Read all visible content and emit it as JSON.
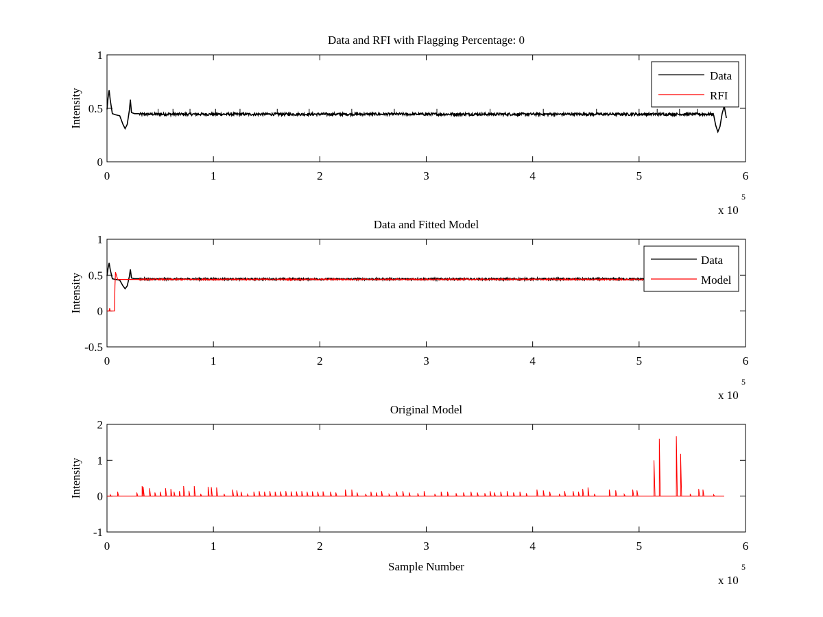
{
  "chart_data": [
    {
      "type": "line",
      "title": "Data and RFI with Flagging Percentage: 0",
      "xlabel": "",
      "ylabel": "Intensity",
      "xlim": [
        0,
        6
      ],
      "ylim": [
        0,
        1
      ],
      "x_ticks": [
        "0",
        "1",
        "2",
        "3",
        "4",
        "5",
        "6"
      ],
      "y_ticks": [
        "0",
        "0.5",
        "1"
      ],
      "x_multiplier": {
        "base": "x 10",
        "exponent": "5"
      },
      "legend": {
        "position": "top-right",
        "entries": [
          "Data",
          "RFI"
        ]
      },
      "grid": false,
      "series": [
        {
          "name": "Data",
          "color": "#000000",
          "x": [
            0,
            0.01,
            0.02,
            0.03,
            0.05,
            0.08,
            0.12,
            0.15,
            0.17,
            0.19,
            0.21,
            0.22,
            0.23,
            0.26,
            0.3,
            5.7,
            5.72,
            5.74,
            5.76,
            5.78,
            5.8,
            5.82
          ],
          "y": [
            0.49,
            0.6,
            0.67,
            0.58,
            0.45,
            0.44,
            0.43,
            0.35,
            0.31,
            0.35,
            0.48,
            0.58,
            0.46,
            0.45,
            0.45,
            0.44,
            0.34,
            0.28,
            0.33,
            0.45,
            0.52,
            0.41
          ],
          "baseline": 0.445,
          "noise": 0.012,
          "spike_x": [
            0.48,
            0.62,
            0.78,
            1.02,
            1.25,
            1.6,
            1.9,
            2.3,
            2.7,
            3.1,
            3.6,
            4.1,
            4.6,
            5.0,
            5.17,
            5.38,
            5.55
          ]
        },
        {
          "name": "RFI",
          "color": "#ff0000",
          "x": [],
          "y": []
        }
      ]
    },
    {
      "type": "line",
      "title": "Data and Fitted Model",
      "xlabel": "",
      "ylabel": "Intensity",
      "xlim": [
        0,
        6
      ],
      "ylim": [
        -0.5,
        1
      ],
      "x_ticks": [
        "0",
        "1",
        "2",
        "3",
        "4",
        "5",
        "6"
      ],
      "y_ticks": [
        "-0.5",
        "0",
        "0.5",
        "1"
      ],
      "x_multiplier": {
        "base": "x 10",
        "exponent": "5"
      },
      "legend": {
        "position": "top-right",
        "entries": [
          "Data",
          "Model"
        ]
      },
      "grid": false,
      "series": [
        {
          "name": "Data",
          "color": "#000000",
          "x": [
            0,
            0.01,
            0.02,
            0.03,
            0.05,
            0.08,
            0.12,
            0.15,
            0.17,
            0.19,
            0.21,
            0.22,
            0.23,
            0.26,
            0.3,
            5.65
          ],
          "y": [
            0.49,
            0.6,
            0.67,
            0.58,
            0.45,
            0.44,
            0.43,
            0.35,
            0.31,
            0.35,
            0.48,
            0.58,
            0.46,
            0.45,
            0.45,
            0.44
          ],
          "baseline": 0.445,
          "noise": 0.012,
          "spike_x": []
        },
        {
          "name": "Model",
          "color": "#ff0000",
          "x": [
            0,
            0.02,
            0.025,
            0.03,
            0.07,
            0.075,
            0.08,
            0.1,
            0.3,
            5.65
          ],
          "y": [
            0.0,
            0.0,
            0.04,
            0.0,
            0.0,
            0.35,
            0.54,
            0.44,
            0.44,
            0.43
          ],
          "baseline": 0.44,
          "noise": 0.01,
          "spike_x": []
        }
      ]
    },
    {
      "type": "line",
      "title": "Original Model",
      "xlabel": "Sample Number",
      "ylabel": "Intensity",
      "xlim": [
        0,
        6
      ],
      "ylim": [
        -1,
        2
      ],
      "x_ticks": [
        "0",
        "1",
        "2",
        "3",
        "4",
        "5",
        "6"
      ],
      "y_ticks": [
        "-1",
        "0",
        "1",
        "2"
      ],
      "x_multiplier": {
        "base": "x 10",
        "exponent": "5"
      },
      "grid": false,
      "series": [
        {
          "color": "#ff0000",
          "baseline": 0,
          "x_range": [
            0,
            5.8
          ],
          "spike_x": [
            0.03,
            0.1,
            0.28,
            0.33,
            0.34,
            0.4,
            0.45,
            0.5,
            0.55,
            0.6,
            0.63,
            0.68,
            0.72,
            0.77,
            0.82,
            0.88,
            0.95,
            0.98,
            1.03,
            1.1,
            1.18,
            1.22,
            1.26,
            1.32,
            1.38,
            1.43,
            1.48,
            1.53,
            1.58,
            1.63,
            1.68,
            1.73,
            1.78,
            1.83,
            1.88,
            1.93,
            1.98,
            2.03,
            2.1,
            2.15,
            2.24,
            2.3,
            2.35,
            2.43,
            2.48,
            2.53,
            2.58,
            2.65,
            2.72,
            2.78,
            2.84,
            2.92,
            2.98,
            3.08,
            3.14,
            3.2,
            3.28,
            3.35,
            3.42,
            3.48,
            3.55,
            3.6,
            3.64,
            3.7,
            3.76,
            3.82,
            3.88,
            3.94,
            4.04,
            4.1,
            4.16,
            4.25,
            4.3,
            4.38,
            4.43,
            4.47,
            4.52,
            4.58,
            4.72,
            4.78,
            4.86,
            4.94,
            4.98,
            5.14,
            5.19,
            5.35,
            5.39,
            5.48,
            5.56,
            5.6,
            5.7
          ],
          "spike_y": [
            0.04,
            0.12,
            0.1,
            0.28,
            0.26,
            0.22,
            0.1,
            0.12,
            0.22,
            0.2,
            0.12,
            0.14,
            0.28,
            0.15,
            0.28,
            0.06,
            0.26,
            0.25,
            0.24,
            0.06,
            0.18,
            0.16,
            0.12,
            0.05,
            0.12,
            0.14,
            0.12,
            0.14,
            0.12,
            0.13,
            0.14,
            0.13,
            0.13,
            0.14,
            0.12,
            0.13,
            0.12,
            0.13,
            0.12,
            0.1,
            0.18,
            0.18,
            0.1,
            0.06,
            0.12,
            0.1,
            0.14,
            0.05,
            0.12,
            0.14,
            0.1,
            0.08,
            0.14,
            0.06,
            0.12,
            0.12,
            0.08,
            0.1,
            0.12,
            0.1,
            0.08,
            0.14,
            0.1,
            0.12,
            0.14,
            0.1,
            0.12,
            0.08,
            0.18,
            0.16,
            0.12,
            0.06,
            0.14,
            0.14,
            0.12,
            0.2,
            0.24,
            0.06,
            0.18,
            0.16,
            0.05,
            0.18,
            0.16,
            1.0,
            1.6,
            1.67,
            1.18,
            0.06,
            0.2,
            0.18,
            0.04
          ]
        }
      ]
    }
  ]
}
